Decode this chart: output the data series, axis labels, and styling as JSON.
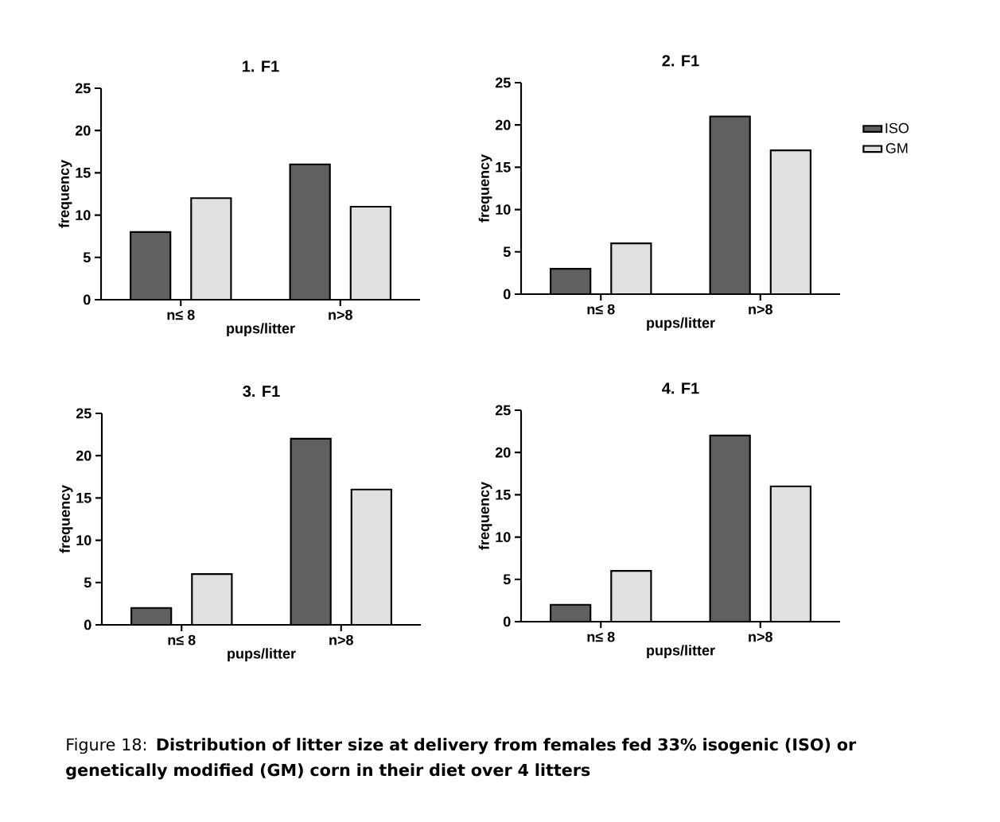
{
  "chart_data": [
    {
      "type": "bar",
      "title": "1. F1",
      "xlabel": "pups/litter",
      "ylabel": "frequency",
      "categories": [
        "n≤ 8",
        "n>8"
      ],
      "series": [
        {
          "color": "#606060",
          "values": [
            8,
            16
          ]
        },
        {
          "color": "#e0e0e0",
          "values": [
            12,
            11
          ]
        }
      ],
      "ylim": [
        0,
        25
      ],
      "yticks": [
        0,
        5,
        10,
        15,
        20,
        25
      ]
    },
    {
      "type": "bar",
      "title": "2. F1",
      "xlabel": "pups/litter",
      "ylabel": "frequency",
      "categories": [
        "n≤ 8",
        "n>8"
      ],
      "series": [
        {
          "name": "ISO",
          "color": "#606060",
          "values": [
            3,
            21
          ]
        },
        {
          "name": "GM",
          "color": "#e0e0e0",
          "values": [
            6,
            17
          ]
        }
      ],
      "ylim": [
        0,
        25
      ],
      "yticks": [
        0,
        5,
        10,
        15,
        20,
        25
      ],
      "legend": "right"
    },
    {
      "type": "bar",
      "title": "3. F1",
      "xlabel": "pups/litter",
      "ylabel": "frequency",
      "categories": [
        "n≤ 8",
        "n>8"
      ],
      "series": [
        {
          "color": "#606060",
          "values": [
            2,
            22
          ]
        },
        {
          "color": "#e0e0e0",
          "values": [
            6,
            16
          ]
        }
      ],
      "ylim": [
        0,
        25
      ],
      "yticks": [
        0,
        5,
        10,
        15,
        20,
        25
      ]
    },
    {
      "type": "bar",
      "title": "4. F1",
      "xlabel": "pups/litter",
      "ylabel": "frequency",
      "categories": [
        "n≤ 8",
        "n>8"
      ],
      "series": [
        {
          "color": "#606060",
          "values": [
            2,
            22
          ]
        },
        {
          "color": "#e0e0e0",
          "values": [
            6,
            16
          ]
        }
      ],
      "ylim": [
        0,
        25
      ],
      "yticks": [
        0,
        5,
        10,
        15,
        20,
        25
      ],
      "annotations": [
        "Figure 18: **Distribution of litter size at delivery from females fed 33% isogenic (ISO) or genetically modified (GM) corn in their diet over 4 litters**"
      ]
    }
  ]
}
